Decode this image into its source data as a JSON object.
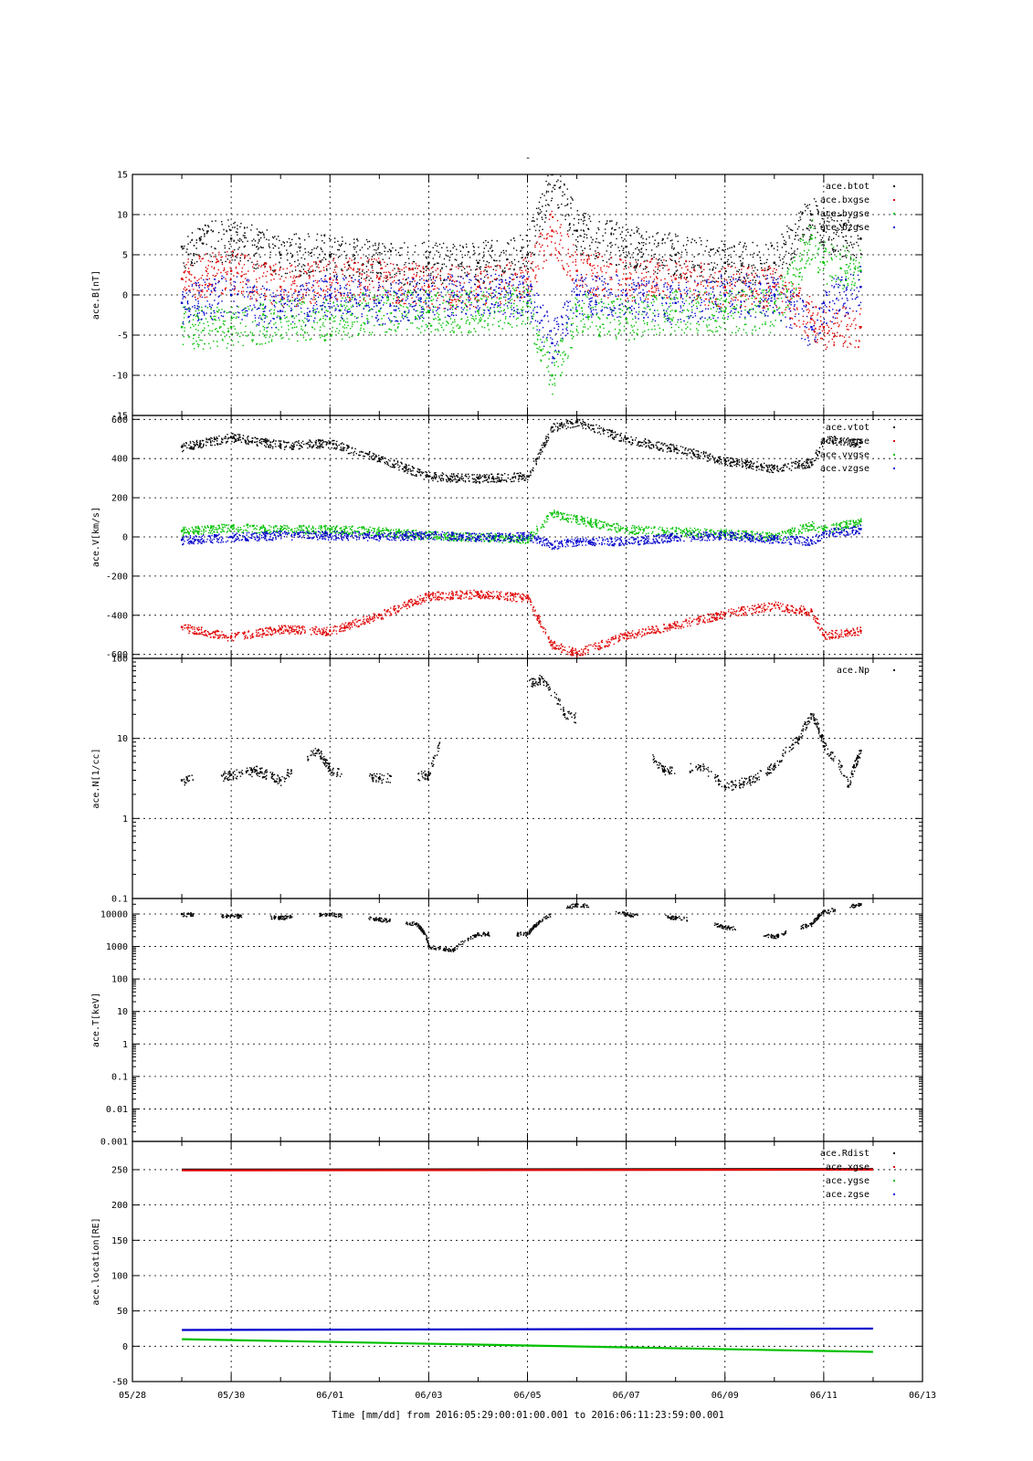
{
  "figure": {
    "title": "-",
    "xlabel": "Time [mm/dd]  from 2016:05:29:00:01:00.001  to  2016:06:11:23:59:00.001",
    "x_tick_labels": [
      "05/28",
      "05/30",
      "06/01",
      "06/03",
      "06/05",
      "06/07",
      "06/09",
      "06/11",
      "06/13"
    ]
  },
  "chart_data": [
    {
      "type": "scatter",
      "ylabel": "ace.B[nT]",
      "ylim": [
        -15,
        15
      ],
      "yscale": "linear",
      "yticks": [
        -15,
        -10,
        -5,
        0,
        5,
        10,
        15
      ],
      "xlim": [
        "05/28",
        "06/13"
      ],
      "grid": true,
      "legend": "top-right",
      "x": [
        "05/29",
        "05/30",
        "05/31",
        "06/01",
        "06/02",
        "06/03",
        "06/04",
        "06/05",
        "06/05 12:00",
        "06/06",
        "06/07",
        "06/08",
        "06/09",
        "06/10",
        "06/10 18:00",
        "06/11",
        "06/11 18:00"
      ],
      "series": [
        {
          "name": "ace.btot",
          "color": "#000000",
          "values": [
            6,
            7,
            5,
            5,
            4,
            4,
            4,
            5,
            15,
            8,
            6,
            5,
            4,
            4,
            10,
            8,
            7
          ]
        },
        {
          "name": "ace.bxgse",
          "color": "#e00000",
          "values": [
            2,
            3,
            1,
            2,
            2,
            1,
            1,
            2,
            8,
            3,
            2,
            2,
            1,
            1,
            -3,
            -4,
            -4
          ]
        },
        {
          "name": "ace.bygse",
          "color": "#00c000",
          "values": [
            -4,
            -4,
            -3,
            -3,
            -2,
            -2,
            -2,
            -1,
            -10,
            -2,
            -3,
            -2,
            -2,
            -2,
            7,
            4,
            3
          ]
        },
        {
          "name": "ace.bzgse",
          "color": "#0000cc",
          "values": [
            -1,
            0,
            -2,
            0,
            -1,
            0,
            0,
            0,
            -6,
            0,
            0,
            -1,
            0,
            0,
            -4,
            -1,
            1
          ]
        }
      ]
    },
    {
      "type": "scatter",
      "ylabel": "ace.V[km/s]",
      "ylim": [
        -620,
        620
      ],
      "yscale": "linear",
      "yticks": [
        -600,
        -400,
        -200,
        0,
        200,
        400,
        600
      ],
      "xlim": [
        "05/28",
        "06/13"
      ],
      "grid": true,
      "legend": "top-right",
      "x": [
        "05/29",
        "05/30",
        "05/31",
        "06/01",
        "06/02",
        "06/03",
        "06/04",
        "06/05",
        "06/05 12:00",
        "06/06",
        "06/07",
        "06/08",
        "06/09",
        "06/10",
        "06/10 18:00",
        "06/11",
        "06/11 18:00"
      ],
      "series": [
        {
          "name": "ace.vtot",
          "color": "#000000",
          "values": [
            460,
            510,
            470,
            480,
            400,
            310,
            300,
            310,
            560,
            590,
            500,
            450,
            390,
            350,
            380,
            500,
            480
          ]
        },
        {
          "name": "ace.vxgse",
          "color": "#e00000",
          "values": [
            -460,
            -510,
            -470,
            -480,
            -400,
            -300,
            -290,
            -310,
            -550,
            -590,
            -500,
            -450,
            -390,
            -350,
            -380,
            -500,
            -480
          ]
        },
        {
          "name": "ace.vygse",
          "color": "#00c000",
          "values": [
            30,
            50,
            40,
            40,
            30,
            10,
            0,
            -10,
            120,
            90,
            40,
            30,
            20,
            0,
            60,
            40,
            80
          ]
        },
        {
          "name": "ace.vzgse",
          "color": "#0000cc",
          "values": [
            -15,
            0,
            10,
            10,
            5,
            10,
            0,
            5,
            -40,
            -20,
            -20,
            0,
            10,
            -10,
            -20,
            20,
            40
          ]
        }
      ]
    },
    {
      "type": "scatter",
      "ylabel": "ace.N[1/cc]",
      "ylim": [
        0.1,
        100
      ],
      "yscale": "log",
      "yticks": [
        0.1,
        1,
        10,
        100
      ],
      "xlim": [
        "05/28",
        "06/13"
      ],
      "grid": true,
      "legend": "top-right",
      "series": [
        {
          "name": "ace.Np",
          "color": "#000000",
          "x": [
            "05/29",
            "05/30",
            "05/30 12:00",
            "05/31",
            "05/31 18:00",
            "06/01",
            "06/02",
            "06/03",
            "06/05 06:00",
            "06/05 18:00",
            "06/07 18:00",
            "06/08 12:00",
            "06/09",
            "06/09 12:00",
            "06/10",
            "06/10 12:00",
            "06/10 18:00",
            "06/11",
            "06/11 12:00",
            "06/11 18:00"
          ],
          "values": [
            3,
            3.5,
            4,
            3,
            7,
            4,
            3.2,
            3.5,
            55,
            20,
            4,
            4.5,
            2.5,
            3,
            4.5,
            10,
            20,
            8,
            2.5,
            7
          ]
        }
      ]
    },
    {
      "type": "scatter",
      "ylabel": "ace.T[keV]",
      "ylim": [
        0.001,
        30000
      ],
      "yscale": "log",
      "yticks": [
        0.001,
        0.01,
        0.1,
        1,
        10,
        100,
        1000,
        10000
      ],
      "ytick_labels": [
        "0.001",
        "0.01",
        "0.1",
        "1",
        "10",
        "100",
        "1000",
        "10000"
      ],
      "xlim": [
        "05/28",
        "06/13"
      ],
      "grid": true,
      "series": [
        {
          "name": "ace.T",
          "color": "#000000",
          "x": [
            "05/29",
            "05/30",
            "05/31",
            "06/01",
            "06/02",
            "06/02 18:00",
            "06/03",
            "06/03 12:00",
            "06/04",
            "06/05",
            "06/05 06:00",
            "06/06",
            "06/07",
            "06/08",
            "06/09",
            "06/10",
            "06/10 18:00",
            "06/11",
            "06/11 18:00"
          ],
          "values": [
            10000,
            9000,
            8000,
            10000,
            7000,
            5000,
            1000,
            800,
            2500,
            2500,
            6000,
            20000,
            10000,
            8000,
            4000,
            2000,
            5000,
            12000,
            20000
          ]
        }
      ]
    },
    {
      "type": "line",
      "ylabel": "ace.location[RE]",
      "ylim": [
        -50,
        290
      ],
      "yscale": "linear",
      "yticks": [
        -50,
        0,
        50,
        100,
        150,
        200,
        250
      ],
      "xlim": [
        "05/28",
        "06/13"
      ],
      "grid": true,
      "legend": "top-right",
      "x": [
        "05/29",
        "06/11 23:59"
      ],
      "series": [
        {
          "name": "ace.Rdist",
          "color": "#000000",
          "values": [
            250,
            251
          ]
        },
        {
          "name": "ace.xgse",
          "color": "#e00000",
          "values": [
            249,
            250
          ]
        },
        {
          "name": "ace.ygse",
          "color": "#00c000",
          "values": [
            10,
            -8
          ]
        },
        {
          "name": "ace.zgse",
          "color": "#0000cc",
          "values": [
            23,
            25
          ]
        }
      ]
    }
  ]
}
